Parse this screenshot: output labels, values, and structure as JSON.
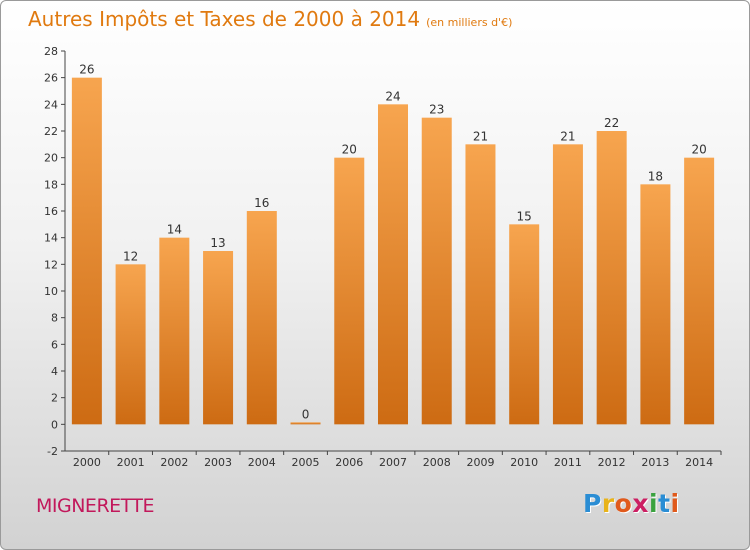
{
  "header": {
    "title": "Autres Impôts et Taxes de 2000 à 2014",
    "subtitle": "(en milliers d'€)"
  },
  "footer": {
    "commune": "MIGNERETTE",
    "logo_letters": [
      "P",
      "r",
      "o",
      "x",
      "i",
      "t",
      "i"
    ]
  },
  "colors": {
    "accent": "#e07a10",
    "bar_light": "#f7a54f",
    "bar_dark": "#cd6b13",
    "commune_text": "#c2185b"
  },
  "chart_data": {
    "type": "bar",
    "categories": [
      "2000",
      "2001",
      "2002",
      "2003",
      "2004",
      "2005",
      "2006",
      "2007",
      "2008",
      "2009",
      "2010",
      "2011",
      "2012",
      "2013",
      "2014"
    ],
    "values": [
      26,
      12,
      14,
      13,
      16,
      0,
      20,
      24,
      23,
      21,
      15,
      21,
      22,
      18,
      20
    ],
    "title": "Autres Impôts et Taxes de 2000 à 2014",
    "ylim": [
      -2,
      28
    ],
    "yticks": [
      -2,
      0,
      2,
      4,
      6,
      8,
      10,
      12,
      14,
      16,
      18,
      20,
      22,
      24,
      26,
      28
    ],
    "grid": false,
    "data_labels": true
  }
}
